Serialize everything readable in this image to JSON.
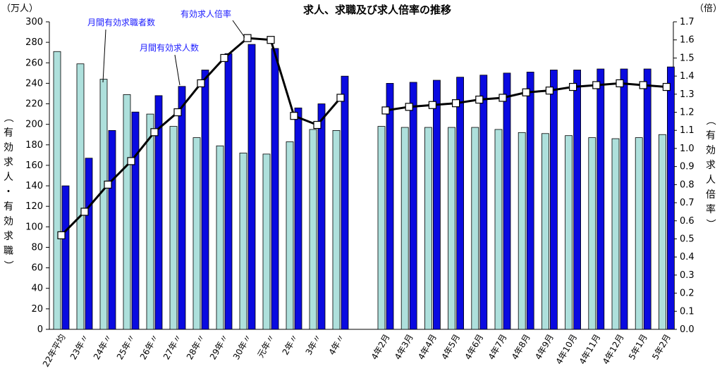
{
  "chart_data": {
    "type": "bar",
    "title": "求人、求職及び求人倍率の推移",
    "left_unit": "（万人）",
    "right_unit": "（倍）",
    "ylabel": "（有効求人・有効求職）",
    "y2label": "（有効求人倍率）",
    "ylim": [
      0,
      300
    ],
    "y2lim": [
      0,
      1.7
    ],
    "yticks": [
      "0",
      "20",
      "40",
      "60",
      "80",
      "100",
      "120",
      "140",
      "160",
      "180",
      "200",
      "220",
      "240",
      "260",
      "280",
      "300"
    ],
    "y2ticks": [
      "0.0",
      "0.1",
      "0.2",
      "0.3",
      "0.4",
      "0.5",
      "0.6",
      "0.7",
      "0.8",
      "0.9",
      "1.0",
      "1.1",
      "1.2",
      "1.3",
      "1.4",
      "1.5",
      "1.6",
      "1.7"
    ],
    "categories": [
      "22年平均",
      "23年〃",
      "24年〃",
      "25年〃",
      "26年〃",
      "27年〃",
      "28年〃",
      "29年〃",
      "30年〃",
      "元年〃",
      "2年〃",
      "3年〃",
      "4年〃",
      "4年2月",
      "4年3月",
      "4年4月",
      "4年5月",
      "4年6月",
      "4年7月",
      "4年8月",
      "4年9月",
      "4年10月",
      "4年11月",
      "4年12月",
      "5年1月",
      "5年2月"
    ],
    "series": [
      {
        "name": "月間有効求職者数",
        "axis": "left",
        "color": "#aee0dc",
        "values": [
          271,
          259,
          244,
          229,
          210,
          198,
          187,
          179,
          172,
          171,
          183,
          195,
          194,
          198,
          197,
          197,
          197,
          197,
          195,
          192,
          191,
          189,
          187,
          186,
          187,
          190
        ]
      },
      {
        "name": "月間有効求人数",
        "axis": "left",
        "color": "#0a0ae0",
        "values": [
          140,
          167,
          194,
          212,
          228,
          237,
          253,
          269,
          278,
          274,
          216,
          220,
          247,
          240,
          241,
          243,
          246,
          248,
          250,
          251,
          253,
          253,
          254,
          254,
          254,
          256
        ]
      },
      {
        "name": "有効求人倍率",
        "axis": "right",
        "type": "line",
        "color": "#000000",
        "values": [
          0.52,
          0.65,
          0.8,
          0.93,
          1.09,
          1.2,
          1.36,
          1.5,
          1.61,
          1.6,
          1.18,
          1.13,
          1.28,
          1.21,
          1.23,
          1.24,
          1.25,
          1.27,
          1.28,
          1.31,
          1.32,
          1.34,
          1.35,
          1.36,
          1.35,
          1.34
        ]
      }
    ],
    "legend": "callouts"
  }
}
